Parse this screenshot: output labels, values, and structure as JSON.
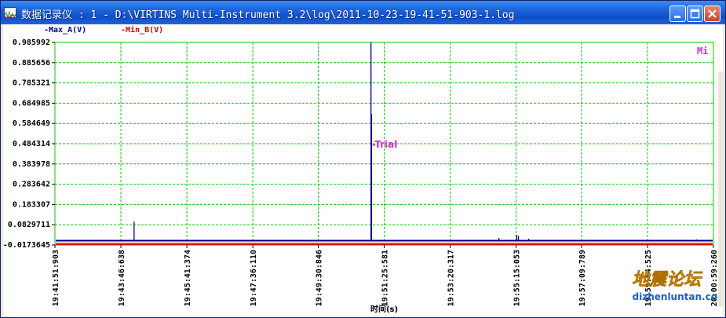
{
  "window": {
    "title": "数据记录仪 : 1 - D:\\VIRTINS Multi-Instrument 3.2\\log\\2011-10-23-19-41-51-903-1.log"
  },
  "legend": {
    "max_label": "-Max_A(V)",
    "min_label": "-Min_B(V)",
    "max_color": "#00008b",
    "min_color": "#cc0000"
  },
  "corner_label": "Mi",
  "annotation": "-Trial",
  "watermark": {
    "text": "地震论坛",
    "url": "dizhenluntan.com"
  },
  "chart_data": {
    "type": "line",
    "xlabel": "时间(s)",
    "ylabel": "",
    "ylim": [
      -0.0173645,
      0.985992
    ],
    "yticks": [
      "0.985992",
      "0.885656",
      "0.785321",
      "0.684985",
      "0.584649",
      "0.484314",
      "0.383978",
      "0.283642",
      "0.183307",
      "0.0829711",
      "-0.0173645"
    ],
    "ytick_values": [
      0.985992,
      0.885656,
      0.785321,
      0.684985,
      0.584649,
      0.484314,
      0.383978,
      0.283642,
      0.183307,
      0.0829711,
      -0.0173645
    ],
    "xticks": [
      "19:41:51:903",
      "19:43:46:638",
      "19:45:41:374",
      "19:47:36:110",
      "19:49:30:846",
      "19:51:25:581",
      "19:53:20:317",
      "19:55:15:053",
      "19:57:09:789",
      "19:59:04:525",
      "20:00:59:260"
    ],
    "grid": true,
    "series": [
      {
        "name": "Max_A(V)",
        "color": "#00008b",
        "baseline": 0.004,
        "spikes": [
          {
            "t": "19:44:09",
            "v": 0.098
          },
          {
            "t": "19:51:02",
            "v": 0.985992
          },
          {
            "t": "19:51:03",
            "v": 0.63
          },
          {
            "t": "19:54:45",
            "v": 0.018
          },
          {
            "t": "19:55:16",
            "v": 0.033
          },
          {
            "t": "19:55:19",
            "v": 0.028
          },
          {
            "t": "19:55:37",
            "v": 0.014
          },
          {
            "t": "20:00:30",
            "v": 0.01
          }
        ]
      },
      {
        "name": "Min_B(V)",
        "color": "#cc0000",
        "baseline": -0.012,
        "spikes": []
      }
    ]
  }
}
